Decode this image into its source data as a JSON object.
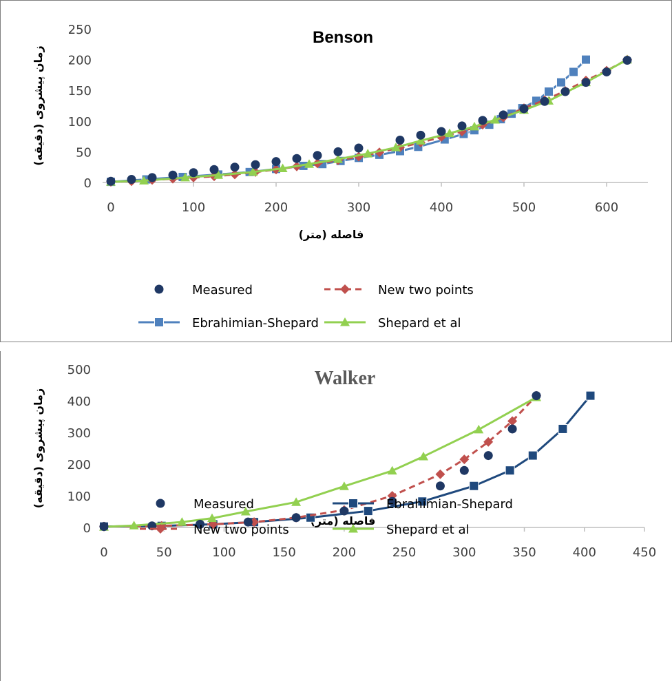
{
  "colors": {
    "measured": "#1F3864",
    "new_two_points": "#C0504D",
    "ebrahimian_benson": "#4F81BD",
    "ebrahimian_walker": "#1F497D",
    "shepard": "#92D050",
    "axis": "#BFBFBF"
  },
  "chart_data": [
    {
      "type": "line",
      "title": "Benson",
      "xlabel": "فاصله (متر)",
      "ylabel": "زمان پیشروی (دقیقه)",
      "xlim": [
        -10,
        650
      ],
      "ylim": [
        0,
        250
      ],
      "xticks": [
        "0",
        "100",
        "200",
        "300",
        "400",
        "500",
        "600"
      ],
      "xtick_values": [
        0,
        100,
        200,
        300,
        400,
        500,
        600
      ],
      "yticks": [
        "0",
        "50",
        "100",
        "150",
        "200",
        "250"
      ],
      "ytick_values": [
        0,
        50,
        100,
        150,
        200,
        250
      ],
      "legend_position": "bottom",
      "legend": [
        {
          "label": "Measured",
          "series": "measured"
        },
        {
          "label": "New two points",
          "series": "new_two_points"
        },
        {
          "label": "Ebrahimian-Shepard",
          "series": "ebrahimian"
        },
        {
          "label": "Shepard et al",
          "series": "shepard"
        }
      ],
      "series": [
        {
          "key": "measured",
          "name": "Measured",
          "style": "markers",
          "marker": "circle",
          "color": "#1F3864",
          "x": [
            0,
            25,
            50,
            75,
            100,
            125,
            150,
            175,
            200,
            225,
            250,
            275,
            300,
            350,
            375,
            400,
            425,
            450,
            475,
            500,
            525,
            550,
            575,
            600,
            625
          ],
          "y": [
            2,
            5,
            8,
            12,
            16,
            21,
            25,
            29,
            34,
            39,
            44,
            50,
            56,
            69,
            77,
            83,
            92,
            101,
            110,
            120,
            132,
            148,
            163,
            180,
            199
          ]
        },
        {
          "key": "new_two_points",
          "name": "New two points",
          "style": "dashed",
          "marker": "diamond",
          "color": "#C0504D",
          "x": [
            0,
            25,
            50,
            75,
            100,
            125,
            150,
            175,
            200,
            225,
            250,
            275,
            300,
            325,
            350,
            375,
            400,
            425,
            450,
            475,
            500,
            525,
            550,
            575,
            600,
            625
          ],
          "y": [
            1,
            2,
            4,
            6,
            8,
            10,
            13,
            17,
            21,
            26,
            31,
            36,
            42,
            49,
            57,
            65,
            74,
            83,
            94,
            106,
            121,
            134,
            149,
            166,
            182,
            200
          ]
        },
        {
          "key": "ebrahimian",
          "name": "Ebrahimian-Shepard",
          "style": "solid",
          "marker": "square",
          "color": "#4F81BD",
          "x": [
            0,
            43,
            87,
            130,
            168,
            200,
            233,
            256,
            278,
            300,
            325,
            350,
            372,
            404,
            427,
            440,
            458,
            472,
            485,
            498,
            515,
            530,
            545,
            560,
            575
          ],
          "y": [
            1,
            5,
            9,
            13,
            17,
            22,
            27,
            30,
            35,
            40,
            45,
            51,
            58,
            70,
            79,
            85,
            94,
            103,
            112,
            121,
            133,
            148,
            163,
            180,
            200
          ]
        },
        {
          "key": "shepard",
          "name": "Shepard et al",
          "style": "solid",
          "marker": "triangle",
          "color": "#92D050",
          "x": [
            0,
            40,
            90,
            130,
            172,
            208,
            240,
            275,
            311,
            345,
            375,
            410,
            440,
            465,
            500,
            530,
            575,
            625
          ],
          "y": [
            1,
            3,
            8,
            12,
            17,
            23,
            30,
            38,
            47,
            57,
            68,
            80,
            91,
            102,
            118,
            133,
            163,
            200
          ]
        }
      ]
    },
    {
      "type": "line",
      "title": "Walker",
      "xlabel": "فاصله (متر)",
      "ylabel": "زمان پیشروی (دقیقه)",
      "xlim": [
        0,
        450
      ],
      "ylim": [
        0,
        500
      ],
      "xticks": [
        "0",
        "50",
        "100",
        "150",
        "200",
        "250",
        "300",
        "350",
        "400",
        "450"
      ],
      "xtick_values": [
        0,
        50,
        100,
        150,
        200,
        250,
        300,
        350,
        400,
        450
      ],
      "yticks": [
        "0",
        "100",
        "200",
        "300",
        "400",
        "500"
      ],
      "ytick_values": [
        0,
        100,
        200,
        300,
        400,
        500
      ],
      "legend_position": "bottom",
      "legend": [
        {
          "label": "Measured",
          "series": "measured"
        },
        {
          "label": "Ebrahimian-Shepard",
          "series": "ebrahimian"
        },
        {
          "label": "New two points",
          "series": "new_two_points"
        },
        {
          "label": "Shepard et al",
          "series": "shepard"
        }
      ],
      "series": [
        {
          "key": "measured",
          "name": "Measured",
          "style": "markers",
          "marker": "circle",
          "color": "#1F3864",
          "x": [
            0,
            40,
            80,
            120,
            160,
            200,
            240,
            280,
            300,
            320,
            340,
            360
          ],
          "y": [
            3,
            5,
            10,
            17,
            31,
            52,
            82,
            131,
            180,
            227,
            311,
            416
          ]
        },
        {
          "key": "ebrahimian",
          "name": "Ebrahimian-Shepard",
          "style": "solid",
          "marker": "square",
          "color": "#1F497D",
          "x": [
            0,
            48,
            91,
            125,
            172,
            220,
            265,
            308,
            338,
            357,
            382,
            405
          ],
          "y": [
            3,
            5,
            10,
            17,
            31,
            52,
            82,
            131,
            180,
            227,
            311,
            416
          ]
        },
        {
          "key": "new_two_points",
          "name": "New two points",
          "style": "dashed",
          "marker": "diamond",
          "color": "#C0504D",
          "x": [
            0,
            48,
            91,
            125,
            160,
            200,
            240,
            280,
            300,
            320,
            340,
            360
          ],
          "y": [
            3,
            5,
            10,
            17,
            31,
            55,
            100,
            168,
            215,
            270,
            336,
            416
          ]
        },
        {
          "key": "shepard",
          "name": "Shepard et al",
          "style": "solid",
          "marker": "triangle",
          "color": "#92D050",
          "x": [
            0,
            25,
            65,
            90,
            118,
            160,
            200,
            240,
            266,
            312,
            360
          ],
          "y": [
            2,
            6,
            17,
            29,
            50,
            80,
            130,
            179,
            224,
            309,
            411
          ]
        }
      ]
    }
  ]
}
